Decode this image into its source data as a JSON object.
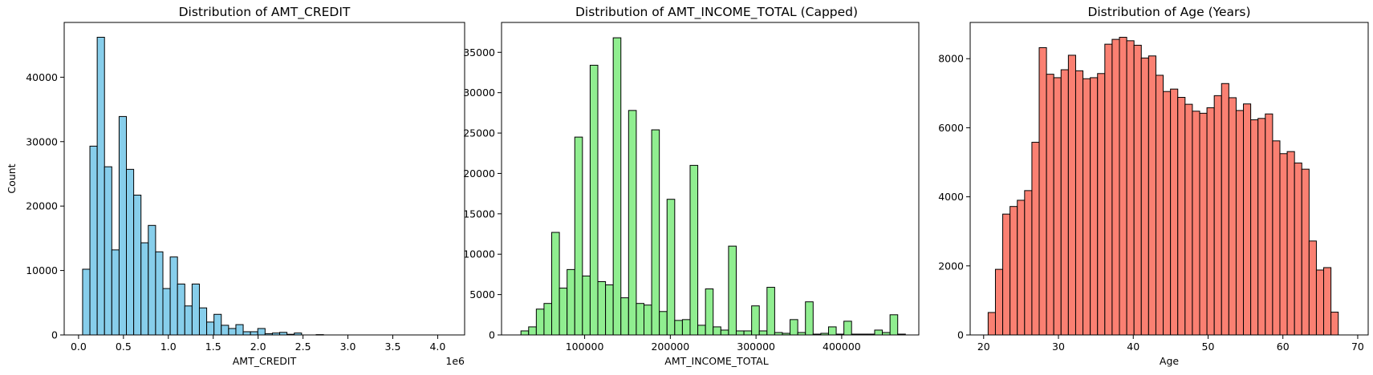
{
  "chart_data": [
    {
      "type": "bar",
      "title": "Distribution of AMT_CREDIT",
      "xlabel": "AMT_CREDIT",
      "ylabel": "Count",
      "offset_label": "1e6",
      "color": "#87ceeb",
      "edge_color": "#000000",
      "xlim": [
        -0.16,
        4.3
      ],
      "ylim": [
        0,
        48500
      ],
      "xticks": [
        0,
        0.5,
        1.0,
        1.5,
        2.0,
        2.5,
        3.0,
        3.5,
        4.0
      ],
      "xtick_labels": [
        "0.0",
        "0.5",
        "1.0",
        "1.5",
        "2.0",
        "2.5",
        "3.0",
        "3.5",
        "4.0"
      ],
      "yticks": [
        0,
        10000,
        20000,
        30000,
        40000
      ],
      "ytick_labels": [
        "0",
        "10000",
        "20000",
        "30000",
        "40000"
      ],
      "bin_start": 0.045,
      "bin_width": 0.0813,
      "values": [
        10200,
        29300,
        46200,
        26100,
        13200,
        33900,
        25700,
        21700,
        14300,
        17000,
        12900,
        7200,
        12100,
        7900,
        4500,
        7900,
        4200,
        2000,
        3200,
        1500,
        1000,
        1600,
        500,
        500,
        1000,
        200,
        300,
        400,
        100,
        300,
        0,
        0,
        50,
        0,
        0,
        0,
        0,
        0,
        0,
        0,
        0,
        0,
        0,
        0,
        0,
        0,
        0,
        0,
        0,
        0
      ]
    },
    {
      "type": "bar",
      "title": "Distribution of AMT_INCOME_TOTAL (Capped)",
      "xlabel": "AMT_INCOME_TOTAL",
      "ylabel": "",
      "offset_label": "",
      "color": "#90ee90",
      "edge_color": "#000000",
      "xlim": [
        3000,
        490000
      ],
      "ylim": [
        0,
        38700
      ],
      "xticks": [
        100000,
        200000,
        300000,
        400000
      ],
      "xtick_labels": [
        "100000",
        "200000",
        "300000",
        "400000"
      ],
      "yticks": [
        0,
        5000,
        10000,
        15000,
        20000,
        25000,
        30000,
        35000
      ],
      "ytick_labels": [
        "0",
        "5000",
        "10000",
        "15000",
        "20000",
        "25000",
        "30000",
        "35000"
      ],
      "bin_start": 25650,
      "bin_width": 8974,
      "values": [
        500,
        1000,
        3200,
        3900,
        12700,
        5800,
        8100,
        24500,
        7300,
        33400,
        6600,
        6200,
        36800,
        4600,
        27800,
        3900,
        3700,
        25400,
        2900,
        16800,
        1800,
        1900,
        21000,
        1200,
        5700,
        1000,
        600,
        11000,
        500,
        500,
        3600,
        500,
        5900,
        300,
        200,
        1900,
        300,
        4100,
        100,
        200,
        1000,
        100,
        1700,
        100,
        100,
        100,
        600,
        300,
        2500,
        100
      ]
    },
    {
      "type": "bar",
      "title": "Distribution of Age (Years)",
      "xlabel": "Age",
      "ylabel": "",
      "offset_label": "",
      "color": "#fa8072",
      "edge_color": "#000000",
      "xlim": [
        18.2,
        71.4
      ],
      "ylim": [
        0,
        9050
      ],
      "xticks": [
        20,
        30,
        40,
        50,
        60,
        70
      ],
      "xtick_labels": [
        "20",
        "30",
        "40",
        "50",
        "60",
        "70"
      ],
      "yticks": [
        0,
        2000,
        4000,
        6000,
        8000
      ],
      "ytick_labels": [
        "0",
        "2000",
        "4000",
        "6000",
        "8000"
      ],
      "bin_start": 20.6,
      "bin_width": 0.975,
      "values": [
        650,
        1900,
        3500,
        3720,
        3900,
        4180,
        5580,
        8320,
        7550,
        7450,
        7680,
        8100,
        7650,
        7420,
        7450,
        7570,
        8420,
        8560,
        8620,
        8520,
        8390,
        8020,
        8080,
        7520,
        7050,
        7120,
        6880,
        6680,
        6480,
        6420,
        6580,
        6930,
        7280,
        6870,
        6500,
        6690,
        6230,
        6270,
        6400,
        5620,
        5250,
        5310,
        4980,
        4800,
        2720,
        1880,
        1950,
        660
      ]
    }
  ]
}
